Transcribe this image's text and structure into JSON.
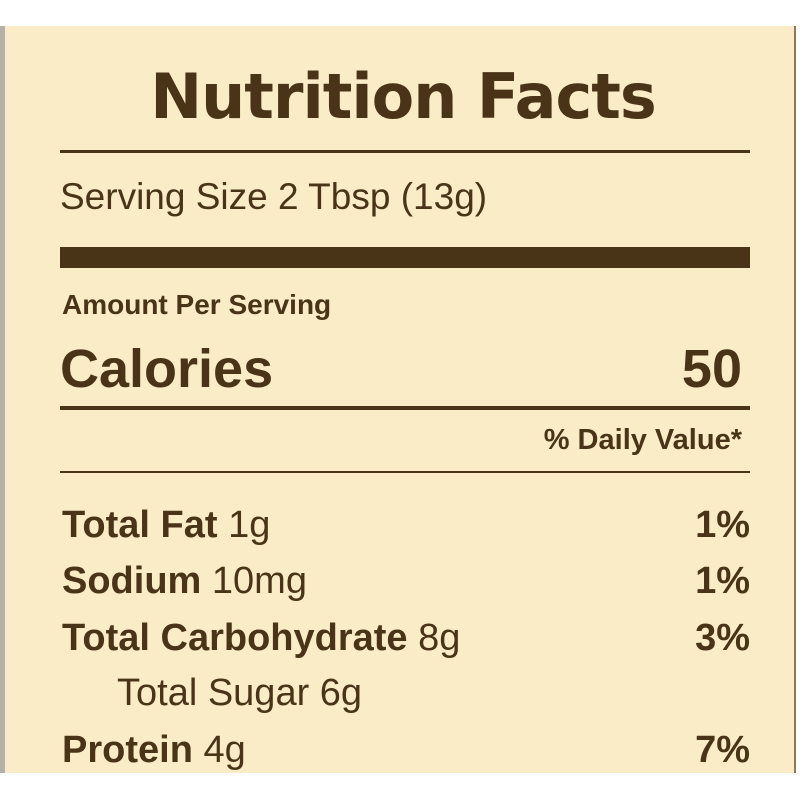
{
  "title": "Nutrition Facts",
  "serving_size": "Serving Size 2 Tbsp (13g)",
  "amount_per_serving": "Amount Per Serving",
  "calories": {
    "label": "Calories",
    "value": "50"
  },
  "daily_value_header": "% Daily Value*",
  "nutrients": [
    {
      "name": "Total Fat",
      "amount": "1g",
      "dv": "1%"
    },
    {
      "name": "Sodium",
      "amount": "10mg",
      "dv": "1%"
    },
    {
      "name": "Total Carbohydrate",
      "amount": "8g",
      "dv": "3%"
    },
    {
      "name": "Total Sugar 6g",
      "amount": "",
      "dv": ""
    },
    {
      "name": "Protein",
      "amount": "4g",
      "dv": "7%"
    }
  ],
  "colors": {
    "background": "#fbecc8",
    "text": "#4a3418"
  }
}
